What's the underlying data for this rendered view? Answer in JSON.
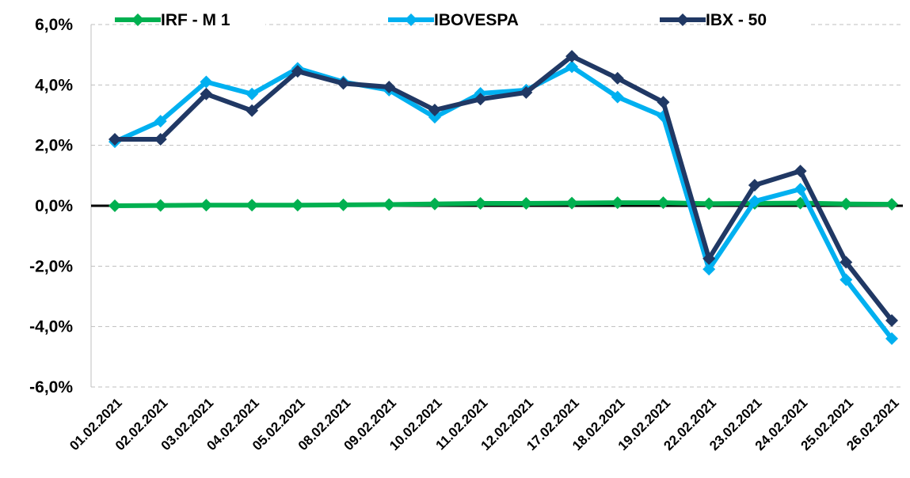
{
  "chart_data": {
    "type": "line",
    "categories": [
      "01.02.2021",
      "02.02.2021",
      "03.02.2021",
      "04.02.2021",
      "05.02.2021",
      "08.02.2021",
      "09.02.2021",
      "10.02.2021",
      "11.02.2021",
      "12.02.2021",
      "17.02.2021",
      "18.02.2021",
      "19.02.2021",
      "22.02.2021",
      "23.02.2021",
      "24.02.2021",
      "25.02.2021",
      "26.02.2021"
    ],
    "series": [
      {
        "name": "IRF - M 1",
        "color": "#00b050",
        "values": [
          0.0,
          0.01,
          0.02,
          0.02,
          0.02,
          0.03,
          0.04,
          0.06,
          0.08,
          0.08,
          0.09,
          0.1,
          0.1,
          0.07,
          0.08,
          0.09,
          0.06,
          0.05
        ]
      },
      {
        "name": "IBOVESPA",
        "color": "#00b0f0",
        "values": [
          2.12,
          2.8,
          4.1,
          3.7,
          4.55,
          4.1,
          3.83,
          2.93,
          3.72,
          3.83,
          4.6,
          3.6,
          2.96,
          -2.1,
          0.15,
          0.55,
          -2.45,
          -4.4
        ]
      },
      {
        "name": "IBX - 50",
        "color": "#203864",
        "values": [
          2.2,
          2.2,
          3.7,
          3.15,
          4.45,
          4.05,
          3.93,
          3.17,
          3.53,
          3.75,
          4.95,
          4.22,
          3.43,
          -1.75,
          0.68,
          1.15,
          -1.87,
          -3.8
        ]
      }
    ],
    "ylim": [
      -6,
      6
    ],
    "yticks": [
      {
        "value": -6,
        "label": "-6,0%"
      },
      {
        "value": -4,
        "label": "-4,0%"
      },
      {
        "value": -2,
        "label": "-2,0%"
      },
      {
        "value": 0,
        "label": "0,0%"
      },
      {
        "value": 2,
        "label": "2,0%"
      },
      {
        "value": 4,
        "label": "4,0%"
      },
      {
        "value": 6,
        "label": "6,0%"
      }
    ],
    "grid": true,
    "legend": "top"
  }
}
